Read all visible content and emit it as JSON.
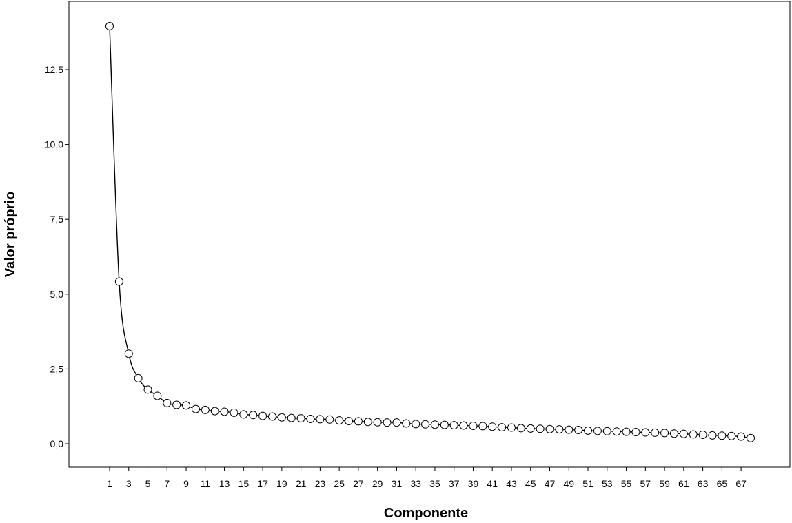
{
  "chart_data": {
    "type": "line",
    "title": "",
    "xlabel": "Componente",
    "ylabel": "Valor próprio",
    "xlim": [
      1,
      68
    ],
    "ylim": [
      -0.6,
      14.7
    ],
    "y_ticks": [
      0.0,
      2.5,
      5.0,
      7.5,
      10.0,
      12.5
    ],
    "y_tick_labels": [
      "0,0",
      "2,5",
      "5,0",
      "7,5",
      "10,0",
      "12,5"
    ],
    "x_ticks": [
      1,
      3,
      5,
      7,
      9,
      11,
      13,
      15,
      17,
      19,
      21,
      23,
      25,
      27,
      29,
      31,
      33,
      35,
      37,
      39,
      41,
      43,
      45,
      47,
      49,
      51,
      53,
      55,
      57,
      59,
      61,
      63,
      65,
      67
    ],
    "x_tick_labels": [
      "1",
      "3",
      "5",
      "7",
      "9",
      "11",
      "13",
      "15",
      "17",
      "19",
      "21",
      "23",
      "25",
      "27",
      "29",
      "31",
      "33",
      "35",
      "37",
      "39",
      "41",
      "43",
      "45",
      "47",
      "49",
      "51",
      "53",
      "55",
      "57",
      "59",
      "61",
      "63",
      "65",
      "67"
    ],
    "grid": false,
    "marker": "open-circle",
    "series": [
      {
        "name": "",
        "x": [
          1,
          2,
          3,
          4,
          5,
          6,
          7,
          8,
          9,
          10,
          11,
          12,
          13,
          14,
          15,
          16,
          17,
          18,
          19,
          20,
          21,
          22,
          23,
          24,
          25,
          26,
          27,
          28,
          29,
          30,
          31,
          32,
          33,
          34,
          35,
          36,
          37,
          38,
          39,
          40,
          41,
          42,
          43,
          44,
          45,
          46,
          47,
          48,
          49,
          50,
          51,
          52,
          53,
          54,
          55,
          56,
          57,
          58,
          59,
          60,
          61,
          62,
          63,
          64,
          65,
          66,
          67,
          68
        ],
        "values": [
          13.95,
          5.42,
          3.01,
          2.19,
          1.81,
          1.6,
          1.36,
          1.3,
          1.28,
          1.16,
          1.13,
          1.09,
          1.07,
          1.04,
          0.98,
          0.96,
          0.93,
          0.91,
          0.88,
          0.86,
          0.85,
          0.83,
          0.82,
          0.81,
          0.78,
          0.76,
          0.75,
          0.73,
          0.72,
          0.71,
          0.71,
          0.68,
          0.66,
          0.65,
          0.64,
          0.63,
          0.62,
          0.61,
          0.6,
          0.59,
          0.57,
          0.55,
          0.54,
          0.52,
          0.51,
          0.5,
          0.49,
          0.48,
          0.47,
          0.46,
          0.44,
          0.43,
          0.42,
          0.41,
          0.4,
          0.39,
          0.38,
          0.37,
          0.36,
          0.34,
          0.33,
          0.31,
          0.3,
          0.28,
          0.27,
          0.26,
          0.24,
          0.19
        ]
      }
    ]
  }
}
